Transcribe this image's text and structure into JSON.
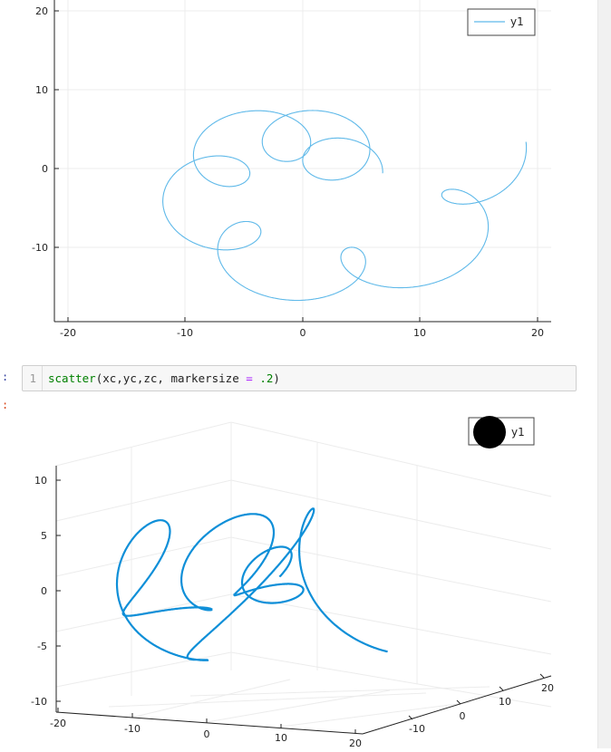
{
  "notebook": {
    "input_prompt": ":",
    "output_prompt": ":",
    "code_cell": {
      "line_number": "1",
      "tokens": {
        "fn": "scatter",
        "open": "(",
        "args": "xc,yc,zc, markersize ",
        "op": "=",
        "space": " ",
        "num": ".2",
        "close": ")"
      }
    }
  },
  "plot2d": {
    "legend_label": "y1",
    "series_color": "#5fb9e9",
    "x_ticks": [
      "-20",
      "-10",
      "0",
      "10",
      "20"
    ],
    "y_ticks": [
      "20",
      "10",
      "0",
      "-10"
    ],
    "xlim": [
      -20,
      21
    ],
    "ylim": [
      -19,
      21
    ]
  },
  "plot3d": {
    "legend_label": "y1",
    "series_color": "#0f8fd8",
    "legend_marker_color": "#000000",
    "z_ticks": [
      "10",
      "5",
      "0",
      "-5",
      "-10"
    ],
    "x_ticks": [
      "-20",
      "-10",
      "0",
      "10",
      "20"
    ],
    "y_ticks": [
      "-10",
      "0",
      "10",
      "20"
    ]
  },
  "chart_data": [
    {
      "type": "line",
      "description_source": "2D line plot of a rosette-like spiral curve",
      "series": [
        {
          "name": "y1"
        }
      ],
      "xlim": [
        -20,
        21
      ],
      "ylim": [
        -19,
        21
      ],
      "x_ticks": [
        -20,
        -10,
        0,
        10,
        20
      ],
      "y_ticks": [
        -10,
        0,
        10,
        20
      ],
      "legend": "top-right",
      "grid": true
    },
    {
      "type": "scatter",
      "series": [
        {
          "name": "y1"
        }
      ],
      "x_ticks": [
        -20,
        -10,
        0,
        10,
        20
      ],
      "y_ticks": [
        -10,
        0,
        10,
        20
      ],
      "z_ticks": [
        -10,
        -5,
        0,
        5,
        10
      ],
      "legend": "top-right",
      "grid": true
    }
  ]
}
